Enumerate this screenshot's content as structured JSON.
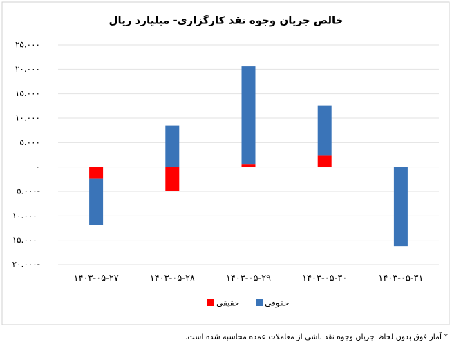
{
  "chart_data": {
    "type": "bar",
    "stacked": true,
    "title": "خالص جریان وجوه نقد کارگزاری- میلیارد ریال",
    "categories": [
      "۱۴۰۳-۰۵-۲۷",
      "۱۴۰۳-۰۵-۲۸",
      "۱۴۰۳-۰۵-۲۹",
      "۱۴۰۳-۰۵-۳۰",
      "۱۴۰۳-۰۵-۳۱"
    ],
    "series": [
      {
        "name": "حقیقی",
        "color": "#ff0000",
        "values": [
          -2400,
          -4900,
          500,
          2300,
          0
        ]
      },
      {
        "name": "حقوقی",
        "color": "#3a74b8",
        "values": [
          -9500,
          8500,
          20100,
          10300,
          -16200
        ]
      }
    ],
    "ylim": [
      -20000,
      25000
    ],
    "yticks": [
      {
        "value": -20000,
        "label": "۲۰.۰۰۰-"
      },
      {
        "value": -15000,
        "label": "۱۵.۰۰۰-"
      },
      {
        "value": -10000,
        "label": "۱۰.۰۰۰-"
      },
      {
        "value": -5000,
        "label": "۵.۰۰۰-"
      },
      {
        "value": 0,
        "label": "۰"
      },
      {
        "value": 5000,
        "label": "۵.۰۰۰"
      },
      {
        "value": 10000,
        "label": "۱۰.۰۰۰"
      },
      {
        "value": 15000,
        "label": "۱۵.۰۰۰"
      },
      {
        "value": 20000,
        "label": "۲۰.۰۰۰"
      },
      {
        "value": 25000,
        "label": "۲۵.۰۰۰"
      }
    ],
    "grid": true,
    "legend": "bottom",
    "footnote": "* آمار فوق بدون لحاظ جریان وجوه نقد ناشی از معاملات عمده محاسبه شده است."
  }
}
